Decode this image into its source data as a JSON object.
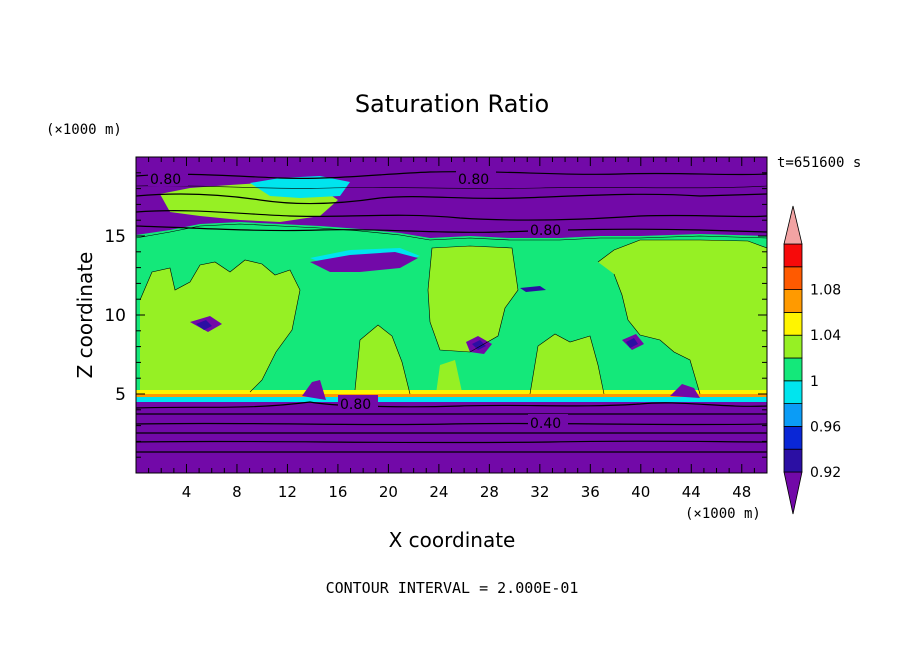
{
  "chart_data": {
    "type": "heatmap",
    "title": "Saturation Ratio",
    "xlabel": "X coordinate",
    "ylabel": "Z coordinate",
    "x_unit": "(×1000 m)",
    "y_unit": "(×1000 m)",
    "time_label": "t=651600 s",
    "footer": "CONTOUR INTERVAL = 2.000E-01",
    "xlim": [
      0,
      50
    ],
    "ylim": [
      0,
      20
    ],
    "x_ticks": [
      "4",
      "8",
      "12",
      "16",
      "20",
      "24",
      "28",
      "32",
      "36",
      "40",
      "44",
      "48"
    ],
    "y_ticks": [
      "5",
      "10",
      "15"
    ],
    "colorbar": {
      "levels": [
        0.92,
        0.94,
        0.96,
        0.98,
        1.0,
        1.02,
        1.04,
        1.06,
        1.08,
        1.1
      ],
      "labels": [
        "0.92",
        "0.96",
        "1",
        "1.04",
        "1.08"
      ],
      "colors": [
        "#7209a8",
        "#2b0fa3",
        "#0a27d6",
        "#0b9cf6",
        "#00e5ee",
        "#14e87a",
        "#96f024",
        "#fff500",
        "#ff9a00",
        "#ff5a00",
        "#f70a0a",
        "#f2a3a3"
      ]
    },
    "contour_labels": [
      {
        "text": "0.80",
        "x": 3,
        "z": 18.5
      },
      {
        "text": "0.80",
        "x": 27,
        "z": 18.5
      },
      {
        "text": "0.80",
        "x": 32,
        "z": 15.4
      },
      {
        "text": "0.80",
        "x": 17,
        "z": 4.5
      },
      {
        "text": "0.40",
        "x": 32,
        "z": 3.2
      }
    ]
  }
}
